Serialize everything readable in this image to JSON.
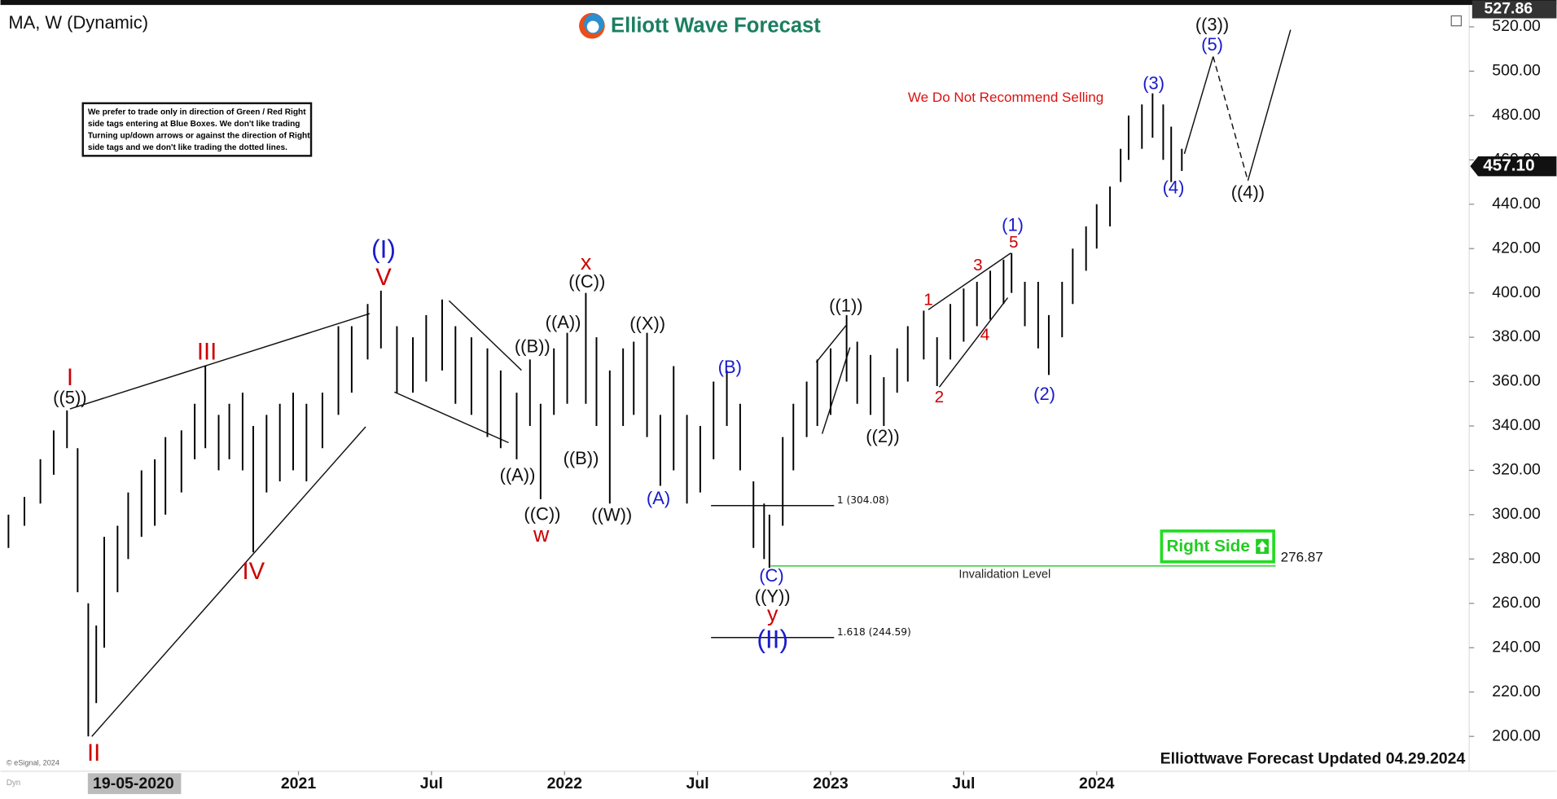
{
  "header": {
    "symbol": "MA, W (Dynamic)",
    "logo": "Elliott Wave Forecast",
    "cursor_date": "19-05-2020",
    "copyright": "© eSignal, 2024",
    "dyn": "Dyn"
  },
  "note": [
    "We prefer to trade only in direction of Green / Red Right",
    "side tags entering at Blue Boxes. We don't like trading",
    "Turning up/down arrows or against the direction of Right",
    "side tags and we don't like trading the dotted lines."
  ],
  "chart_data": {
    "type": "ohlc",
    "color": "#000000",
    "x": [
      2019.91,
      2019.97,
      2020.03,
      2020.08,
      2020.13,
      2020.17,
      2020.21,
      2020.24,
      2020.27,
      2020.32,
      2020.36,
      2020.41,
      2020.46,
      2020.5,
      2020.56,
      2020.61,
      2020.65,
      2020.7,
      2020.74,
      2020.79,
      2020.83,
      2020.88,
      2020.93,
      2020.98,
      2021.03,
      2021.09,
      2021.15,
      2021.2,
      2021.26,
      2021.31,
      2021.37,
      2021.43,
      2021.48,
      2021.54,
      2021.59,
      2021.65,
      2021.71,
      2021.76,
      2021.82,
      2021.87,
      2021.91,
      2021.96,
      2022.01,
      2022.08,
      2022.12,
      2022.17,
      2022.22,
      2022.26,
      2022.31,
      2022.36,
      2022.41,
      2022.46,
      2022.51,
      2022.56,
      2022.61,
      2022.66,
      2022.71,
      2022.75,
      2022.77,
      2022.82,
      2022.86,
      2022.91,
      2022.95,
      2023.0,
      2023.06,
      2023.1,
      2023.15,
      2023.2,
      2023.25,
      2023.29,
      2023.35,
      2023.4,
      2023.45,
      2023.5,
      2023.55,
      2023.6,
      2023.65,
      2023.68,
      2023.73,
      2023.78,
      2023.82,
      2023.87,
      2023.91,
      2023.96,
      2024.0,
      2024.05,
      2024.09,
      2024.12,
      2024.17,
      2024.21,
      2024.25,
      2024.28,
      2024.32
    ],
    "high": [
      300,
      308,
      325,
      338,
      347,
      330,
      260,
      250,
      290,
      295,
      310,
      320,
      325,
      335,
      338,
      350,
      367,
      345,
      350,
      355,
      340,
      345,
      350,
      355,
      350,
      355,
      385,
      385,
      395,
      401,
      385,
      380,
      390,
      397,
      385,
      380,
      375,
      365,
      355,
      370,
      350,
      375,
      382,
      400,
      380,
      365,
      375,
      378,
      382,
      345,
      367,
      345,
      340,
      360,
      365,
      350,
      315,
      305,
      300,
      335,
      350,
      360,
      370,
      375,
      390,
      378,
      372,
      362,
      375,
      385,
      392,
      380,
      395,
      402,
      405,
      410,
      415,
      418,
      405,
      405,
      390,
      405,
      420,
      430,
      440,
      448,
      465,
      480,
      485,
      490,
      485,
      475,
      465
    ],
    "low": [
      285,
      295,
      305,
      318,
      330,
      265,
      200,
      215,
      240,
      265,
      280,
      290,
      295,
      300,
      310,
      325,
      330,
      320,
      325,
      320,
      283,
      310,
      315,
      320,
      315,
      330,
      345,
      355,
      370,
      375,
      355,
      355,
      360,
      365,
      350,
      345,
      335,
      330,
      325,
      340,
      307,
      345,
      350,
      350,
      340,
      305,
      340,
      345,
      335,
      313,
      320,
      305,
      310,
      325,
      340,
      320,
      285,
      280,
      276,
      295,
      320,
      335,
      340,
      345,
      360,
      350,
      345,
      340,
      355,
      360,
      370,
      358,
      370,
      378,
      385,
      388,
      395,
      400,
      385,
      375,
      363,
      380,
      395,
      410,
      420,
      430,
      450,
      460,
      465,
      470,
      460,
      450,
      455
    ],
    "xlim": [
      2019.88,
      2025.4
    ],
    "xticks": [
      2021,
      {
        "value": 2021.5,
        "label": "Jul"
      },
      2022,
      {
        "value": 2022.5,
        "label": "Jul"
      },
      2023,
      {
        "value": 2023.5,
        "label": "Jul"
      },
      2024
    ],
    "ylim": [
      184.3,
      532.1
    ],
    "yticks": [
      {
        "value": 200,
        "label": "200.00"
      },
      {
        "value": 220,
        "label": "220.00"
      },
      {
        "value": 240,
        "label": "240.00"
      },
      {
        "value": 260,
        "label": "260.00"
      },
      {
        "value": 280,
        "label": "280.00"
      },
      {
        "value": 300,
        "label": "300.00"
      },
      {
        "value": 320,
        "label": "320.00"
      },
      {
        "value": 340,
        "label": "340.00"
      },
      {
        "value": 360,
        "label": "360.00"
      },
      {
        "value": 380,
        "label": "380.00"
      },
      {
        "value": 400,
        "label": "400.00"
      },
      {
        "value": 420,
        "label": "420.00"
      },
      {
        "value": 440,
        "label": "440.00"
      },
      {
        "value": 460,
        "label": "460.00"
      },
      {
        "value": 480,
        "label": "480.00"
      },
      {
        "value": 500,
        "label": "500.00"
      },
      {
        "value": 520,
        "label": "520.00"
      }
    ],
    "high_tag": 527.86,
    "last_price": {
      "value": 457.1,
      "label": "457.10"
    },
    "fib_levels": [
      {
        "value": 304.08,
        "label": "1 (304.08)"
      },
      {
        "value": 244.59,
        "label": "1.618 (244.59)"
      }
    ],
    "invalidation": {
      "value": 276.87,
      "label": "Invalidation Level",
      "color": "#33cc33"
    },
    "annotations": [
      {
        "text": "((5))",
        "color": "#111111"
      },
      {
        "text": "I",
        "color": "#cc0000"
      },
      {
        "text": "II",
        "color": "#cc0000"
      },
      {
        "text": "III",
        "color": "#cc0000"
      },
      {
        "text": "IV",
        "color": "#cc0000"
      },
      {
        "text": "V",
        "color": "#cc0000"
      },
      {
        "text": "(I)",
        "color": "#1a1acc"
      },
      {
        "text": "((A))",
        "color": "#111111"
      },
      {
        "text": "((B))",
        "color": "#111111"
      },
      {
        "text": "((C))",
        "color": "#111111"
      },
      {
        "text": "w",
        "color": "#cc0000"
      },
      {
        "text": "((A))",
        "color": "#111111"
      },
      {
        "text": "((C))",
        "color": "#111111"
      },
      {
        "text": "x",
        "color": "#cc0000"
      },
      {
        "text": "((B))",
        "color": "#111111"
      },
      {
        "text": "((W))",
        "color": "#111111"
      },
      {
        "text": "((X))",
        "color": "#111111"
      },
      {
        "text": "(A)",
        "color": "#1a1acc"
      },
      {
        "text": "(B)",
        "color": "#1a1acc"
      },
      {
        "text": "(C)",
        "color": "#1a1acc"
      },
      {
        "text": "((Y))",
        "color": "#111111"
      },
      {
        "text": "y",
        "color": "#cc0000"
      },
      {
        "text": "(II)",
        "color": "#1a1acc"
      },
      {
        "text": "((1))",
        "color": "#111111"
      },
      {
        "text": "((2))",
        "color": "#111111"
      },
      {
        "text": "1",
        "color": "#cc0000"
      },
      {
        "text": "2",
        "color": "#cc0000"
      },
      {
        "text": "3",
        "color": "#cc0000"
      },
      {
        "text": "4",
        "color": "#cc0000"
      },
      {
        "text": "5",
        "color": "#cc0000"
      },
      {
        "text": "(1)",
        "color": "#1a1acc"
      },
      {
        "text": "(2)",
        "color": "#1a1acc"
      },
      {
        "text": "(3)",
        "color": "#1a1acc"
      },
      {
        "text": "(4)",
        "color": "#1a1acc"
      },
      {
        "text": "(5)",
        "color": "#1a1acc"
      },
      {
        "text": "((3))",
        "color": "#111111"
      },
      {
        "text": "((4))",
        "color": "#111111"
      }
    ],
    "notice": "We Do Not Recommend Selling",
    "right_side": "Right Side",
    "footer": "Elliottwave Forecast Updated 04.29.2024"
  }
}
